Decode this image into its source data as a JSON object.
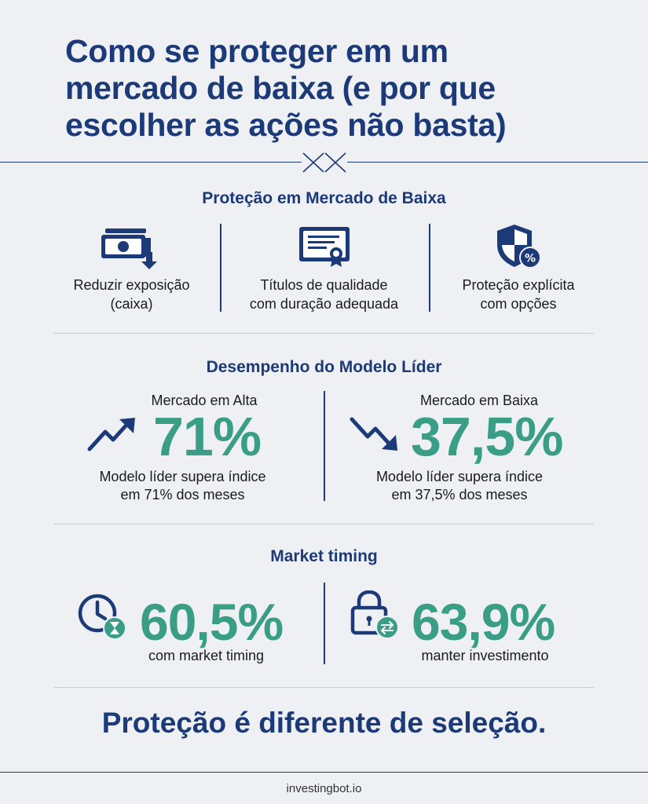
{
  "header": {
    "title_line1": "Como se proteger em um",
    "title_line2": "mercado de baixa (e por que",
    "title_line3": "escolher as ações não basta)"
  },
  "protection": {
    "title": "Proteção em Mercado de Baixa",
    "items": [
      {
        "icon": "cash-down-icon",
        "line1": "Reduzir exposição",
        "line2": "(caixa)"
      },
      {
        "icon": "certificate-icon",
        "line1": "Títulos de qualidade",
        "line2": "com duração adequada"
      },
      {
        "icon": "shield-percent-icon",
        "line1": "Proteção explícita",
        "line2": "com opções"
      }
    ]
  },
  "performance": {
    "title": "Desempenho do Modelo Líder",
    "bull": {
      "icon": "trend-up-icon",
      "kicker": "Mercado em Alta",
      "value": "71%",
      "desc_line1": "Modelo líder supera índice",
      "desc_line2": "em 71% dos meses"
    },
    "bear": {
      "icon": "trend-down-icon",
      "kicker": "Mercado em Baixa",
      "value": "37,5%",
      "desc_line1": "Modelo líder supera índice",
      "desc_line2": "em 37,5% dos meses"
    }
  },
  "timing": {
    "title": "Market timing",
    "left": {
      "icon": "clock-hourglass-icon",
      "value": "60,5%",
      "label": "com market timing"
    },
    "right": {
      "icon": "lock-exchange-icon",
      "value": "63,9%",
      "label": "manter investimento"
    }
  },
  "tagline": "Proteção é diferente de seleção.",
  "footer": "investingbot.io",
  "colors": {
    "navy": "#1c3a78",
    "teal": "#3a9e86",
    "background": "#eef0f4"
  }
}
